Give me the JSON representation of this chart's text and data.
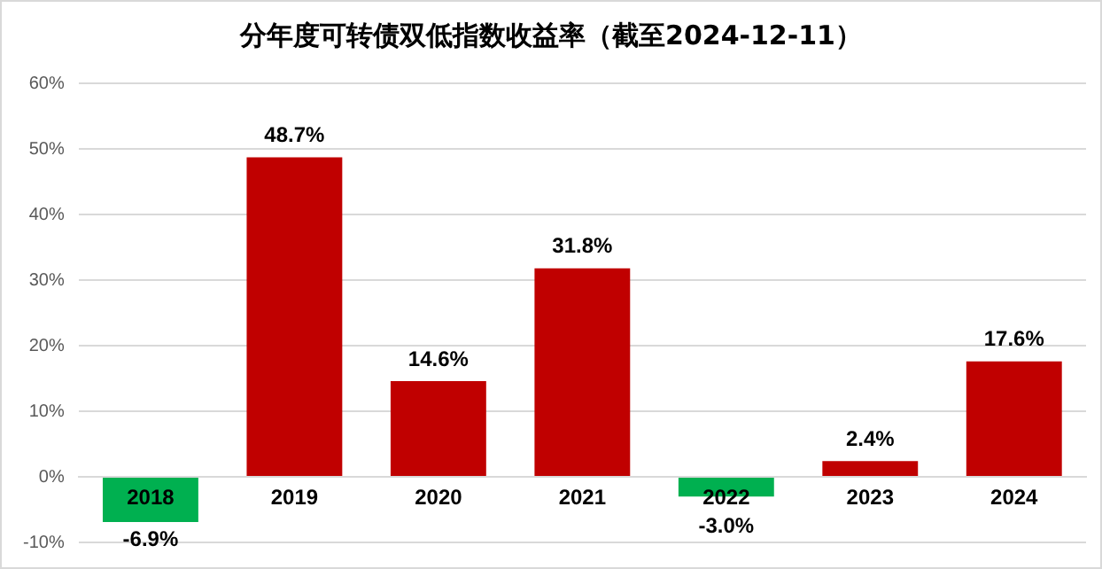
{
  "chart_data": {
    "type": "bar",
    "title": "分年度可转债双低指数收益率（截至2024-12-11）",
    "categories": [
      "2018",
      "2019",
      "2020",
      "2021",
      "2022",
      "2023",
      "2024"
    ],
    "values": [
      -6.9,
      48.7,
      14.6,
      31.8,
      -3.0,
      2.4,
      17.6
    ],
    "colors": [
      "#00b050",
      "#c00000",
      "#c00000",
      "#c00000",
      "#00b050",
      "#c00000",
      "#c00000"
    ],
    "value_labels": [
      "-6.9%",
      "48.7%",
      "14.6%",
      "31.8%",
      "-3.0%",
      "2.4%",
      "17.6%"
    ],
    "ylim": [
      -10,
      60
    ],
    "yticks": [
      {
        "value": -10,
        "label": "-10%"
      },
      {
        "value": 0,
        "label": "0%"
      },
      {
        "value": 10,
        "label": "10%"
      },
      {
        "value": 20,
        "label": "20%"
      },
      {
        "value": 30,
        "label": "30%"
      },
      {
        "value": 40,
        "label": "40%"
      },
      {
        "value": 50,
        "label": "50%"
      },
      {
        "value": 60,
        "label": "60%"
      }
    ],
    "grid": "y",
    "legend": false
  }
}
